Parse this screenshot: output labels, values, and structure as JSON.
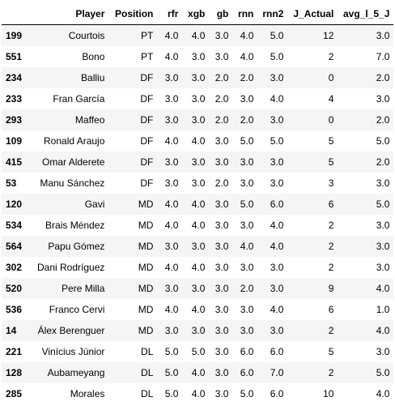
{
  "table": {
    "columns": [
      "",
      "Player",
      "Position",
      "rfr",
      "xgb",
      "gb",
      "rnn",
      "rnn2",
      "J_Actual",
      "avg_l_5_J"
    ],
    "rows": [
      {
        "index": "199",
        "cells": [
          "Courtois",
          "PT",
          "4.0",
          "4.0",
          "3.0",
          "4.0",
          "5.0",
          "12",
          "3.0"
        ]
      },
      {
        "index": "551",
        "cells": [
          "Bono",
          "PT",
          "4.0",
          "3.0",
          "3.0",
          "4.0",
          "5.0",
          "2",
          "7.0"
        ]
      },
      {
        "index": "234",
        "cells": [
          "Balliu",
          "DF",
          "3.0",
          "3.0",
          "2.0",
          "2.0",
          "3.0",
          "0",
          "2.0"
        ]
      },
      {
        "index": "233",
        "cells": [
          "Fran García",
          "DF",
          "3.0",
          "3.0",
          "2.0",
          "3.0",
          "4.0",
          "4",
          "3.0"
        ]
      },
      {
        "index": "293",
        "cells": [
          "Maffeo",
          "DF",
          "3.0",
          "3.0",
          "2.0",
          "2.0",
          "3.0",
          "0",
          "2.0"
        ]
      },
      {
        "index": "109",
        "cells": [
          "Ronald Araujo",
          "DF",
          "4.0",
          "4.0",
          "3.0",
          "5.0",
          "5.0",
          "5",
          "5.0"
        ]
      },
      {
        "index": "415",
        "cells": [
          "Omar Alderete",
          "DF",
          "3.0",
          "3.0",
          "3.0",
          "3.0",
          "3.0",
          "5",
          "2.0"
        ]
      },
      {
        "index": "53",
        "cells": [
          "Manu Sánchez",
          "DF",
          "3.0",
          "3.0",
          "2.0",
          "3.0",
          "3.0",
          "3",
          "3.0"
        ]
      },
      {
        "index": "120",
        "cells": [
          "Gavi",
          "MD",
          "4.0",
          "4.0",
          "3.0",
          "5.0",
          "6.0",
          "6",
          "5.0"
        ]
      },
      {
        "index": "534",
        "cells": [
          "Brais Méndez",
          "MD",
          "4.0",
          "4.0",
          "3.0",
          "3.0",
          "4.0",
          "2",
          "3.0"
        ]
      },
      {
        "index": "564",
        "cells": [
          "Papu Gómez",
          "MD",
          "3.0",
          "3.0",
          "3.0",
          "4.0",
          "4.0",
          "2",
          "3.0"
        ]
      },
      {
        "index": "302",
        "cells": [
          "Dani Rodríguez",
          "MD",
          "4.0",
          "4.0",
          "3.0",
          "3.0",
          "3.0",
          "2",
          "3.0"
        ]
      },
      {
        "index": "520",
        "cells": [
          "Pere Milla",
          "MD",
          "3.0",
          "3.0",
          "3.0",
          "2.0",
          "3.0",
          "9",
          "4.0"
        ]
      },
      {
        "index": "536",
        "cells": [
          "Franco Cervi",
          "MD",
          "4.0",
          "4.0",
          "3.0",
          "3.0",
          "4.0",
          "6",
          "1.0"
        ]
      },
      {
        "index": "14",
        "cells": [
          "Álex Berenguer",
          "MD",
          "3.0",
          "3.0",
          "3.0",
          "3.0",
          "3.0",
          "2",
          "4.0"
        ]
      },
      {
        "index": "221",
        "cells": [
          "Vinícius Júnior",
          "DL",
          "5.0",
          "5.0",
          "3.0",
          "6.0",
          "6.0",
          "5",
          "3.0"
        ]
      },
      {
        "index": "128",
        "cells": [
          "Aubameyang",
          "DL",
          "5.0",
          "4.0",
          "3.0",
          "6.0",
          "7.0",
          "2",
          "5.0"
        ]
      },
      {
        "index": "285",
        "cells": [
          "Morales",
          "DL",
          "5.0",
          "4.0",
          "3.0",
          "5.0",
          "6.0",
          "10",
          "4.0"
        ]
      }
    ]
  }
}
